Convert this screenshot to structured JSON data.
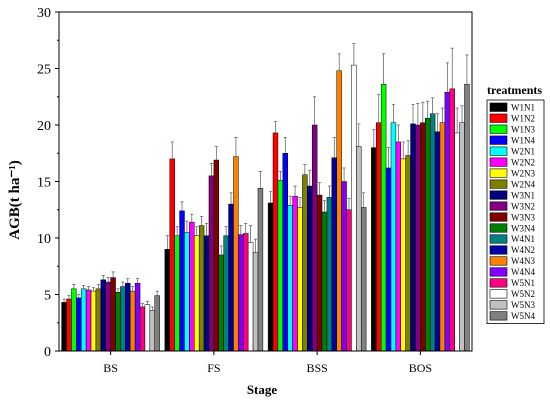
{
  "chart_data": {
    "type": "bar",
    "xlabel": "Stage",
    "ylabel": "AGB(t ha⁻¹)",
    "ylim": [
      0,
      30
    ],
    "yticks": [
      "0",
      "5",
      "10",
      "15",
      "20",
      "25",
      "30"
    ],
    "categories": [
      "BS",
      "FS",
      "BSS",
      "BOS"
    ],
    "legend_title": "treatments",
    "legend_position": "right",
    "error_bars": true,
    "grid": false,
    "series": [
      {
        "name": "W1N1",
        "color": "#000000",
        "values": [
          4.3,
          9.0,
          13.1,
          18.0
        ],
        "errors": [
          0.3,
          1.2,
          1.0,
          1.6
        ]
      },
      {
        "name": "W1N2",
        "color": "#ff0000",
        "values": [
          4.6,
          17.0,
          19.3,
          20.2
        ],
        "errors": [
          0.3,
          1.5,
          1.0,
          2.5
        ]
      },
      {
        "name": "W1N3",
        "color": "#00ff00",
        "values": [
          5.5,
          10.2,
          15.1,
          23.6
        ],
        "errors": [
          0.4,
          0.8,
          0.8,
          2.7
        ]
      },
      {
        "name": "W1N4",
        "color": "#0000ff",
        "values": [
          4.7,
          12.4,
          17.5,
          16.2
        ],
        "errors": [
          0.3,
          0.8,
          1.4,
          1.8
        ]
      },
      {
        "name": "W2N1",
        "color": "#00ffff",
        "values": [
          5.5,
          10.5,
          12.9,
          20.2
        ],
        "errors": [
          0.3,
          1.0,
          0.8,
          1.6
        ]
      },
      {
        "name": "W2N2",
        "color": "#ff00ff",
        "values": [
          5.4,
          11.4,
          13.7,
          18.5
        ],
        "errors": [
          0.3,
          0.7,
          0.9,
          1.5
        ]
      },
      {
        "name": "W2N3",
        "color": "#ffff00",
        "values": [
          5.3,
          10.2,
          12.7,
          17.0
        ],
        "errors": [
          0.3,
          0.8,
          0.9,
          1.5
        ]
      },
      {
        "name": "W2N4",
        "color": "#808000",
        "values": [
          5.5,
          11.1,
          15.6,
          17.3
        ],
        "errors": [
          0.4,
          0.8,
          0.9,
          1.3
        ]
      },
      {
        "name": "W3N1",
        "color": "#000080",
        "values": [
          6.3,
          10.2,
          14.6,
          20.1
        ],
        "errors": [
          0.4,
          1.1,
          1.4,
          1.7
        ]
      },
      {
        "name": "W3N2",
        "color": "#800080",
        "values": [
          6.1,
          15.5,
          20.0,
          20.0
        ],
        "errors": [
          0.4,
          1.1,
          2.5,
          1.9
        ]
      },
      {
        "name": "W3N3",
        "color": "#800000",
        "values": [
          6.5,
          16.9,
          13.8,
          20.2
        ],
        "errors": [
          0.5,
          1.2,
          1.1,
          1.8
        ]
      },
      {
        "name": "W3N4",
        "color": "#008000",
        "values": [
          5.2,
          8.5,
          12.3,
          20.6
        ],
        "errors": [
          0.3,
          0.8,
          1.0,
          1.5
        ]
      },
      {
        "name": "W4N1",
        "color": "#008080",
        "values": [
          5.7,
          10.2,
          13.6,
          21.0
        ],
        "errors": [
          0.4,
          0.8,
          1.0,
          1.4
        ]
      },
      {
        "name": "W4N2",
        "color": "#0000a0",
        "values": [
          6.0,
          13.0,
          17.1,
          19.4
        ],
        "errors": [
          0.4,
          1.0,
          1.8,
          1.6
        ]
      },
      {
        "name": "W4N3",
        "color": "#ff8000",
        "values": [
          5.3,
          17.2,
          24.8,
          20.2
        ],
        "errors": [
          0.4,
          1.7,
          1.5,
          1.3
        ]
      },
      {
        "name": "W4N4",
        "color": "#8000ff",
        "values": [
          6.0,
          10.3,
          15.0,
          22.9
        ],
        "errors": [
          0.4,
          0.8,
          1.2,
          2.6
        ]
      },
      {
        "name": "W5N1",
        "color": "#ff0080",
        "values": [
          3.9,
          10.4,
          12.5,
          23.2
        ],
        "errors": [
          0.3,
          0.9,
          1.0,
          3.6
        ]
      },
      {
        "name": "W5N2",
        "color": "#ffffff",
        "values": [
          4.1,
          9.6,
          25.3,
          19.3
        ],
        "errors": [
          0.3,
          1.5,
          1.9,
          2.2
        ]
      },
      {
        "name": "W5N3",
        "color": "#c0c0c0",
        "values": [
          3.6,
          8.7,
          18.1,
          20.2
        ],
        "errors": [
          0.3,
          1.2,
          2.0,
          1.5
        ]
      },
      {
        "name": "W5N4",
        "color": "#808080",
        "values": [
          4.9,
          14.4,
          12.7,
          23.6
        ],
        "errors": [
          0.4,
          1.5,
          1.3,
          2.6
        ]
      }
    ]
  }
}
